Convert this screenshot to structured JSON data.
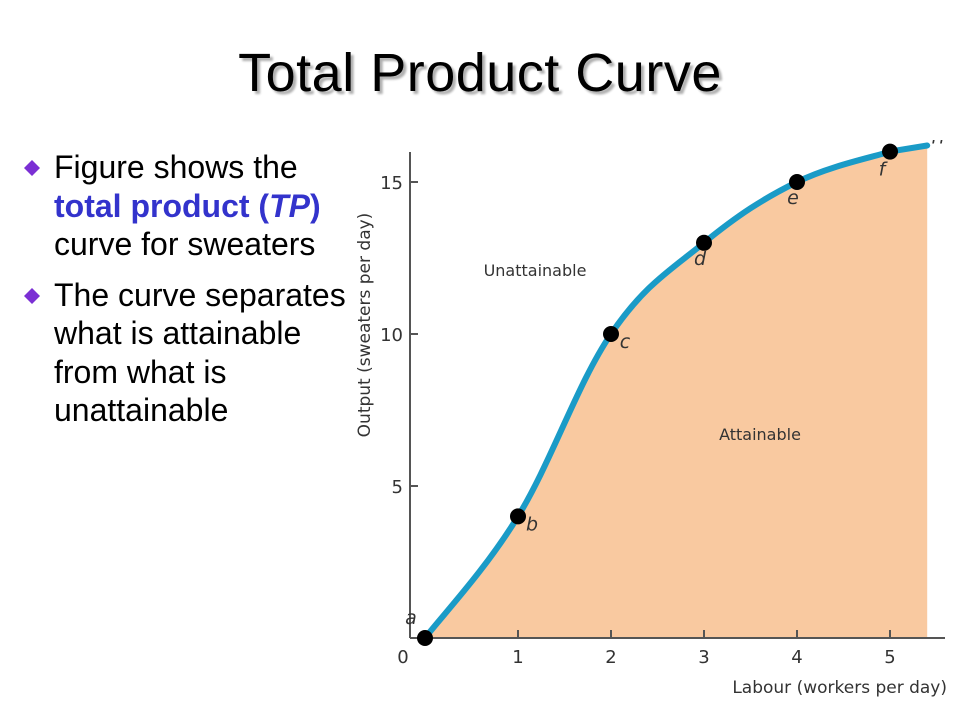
{
  "slide": {
    "title": "Total Product Curve",
    "bullet_color": "#7b2fd4",
    "highlight_color": "#3333cc",
    "bullets": [
      {
        "before": "Figure shows the ",
        "highlight": "total product (",
        "highlight_italic": "TP",
        "highlight_after": ")",
        "after": " curve for sweaters"
      },
      {
        "text": "The curve separates what is  attainable from what is unattainable"
      }
    ]
  },
  "chart_data": {
    "type": "line",
    "x": [
      0,
      1,
      2,
      3,
      4,
      5
    ],
    "series": [
      {
        "name": "TP",
        "values": [
          0,
          4,
          10,
          13,
          15,
          16
        ]
      }
    ],
    "point_labels": [
      "a",
      "b",
      "c",
      "d",
      "e",
      "f"
    ],
    "xlabel": "Labour (workers per day)",
    "ylabel": "Output (sweaters per day)",
    "xticks": [
      0,
      1,
      2,
      3,
      4,
      5
    ],
    "yticks": [
      5,
      10,
      15
    ],
    "origin_label": "0",
    "xlim": [
      0,
      5.5
    ],
    "ylim": [
      0,
      16.5
    ],
    "regions": {
      "above": "Unattainable",
      "below": "Attainable"
    },
    "colors": {
      "curve": "#1a9bc7",
      "fill": "#f9c9a0",
      "points": "#000000"
    },
    "grid": false
  }
}
